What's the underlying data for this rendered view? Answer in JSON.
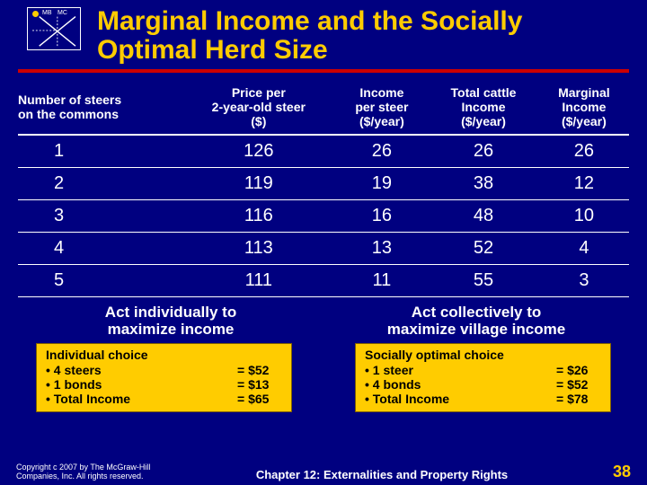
{
  "icon": {
    "mb": "MB",
    "mc": "MC"
  },
  "title": "Marginal Income and the Socially Optimal Herd Size",
  "headers": {
    "col1a": "Number of steers",
    "col1b": "on the commons",
    "col2a": "Price per",
    "col2b": "2-year-old steer",
    "col2c": "($)",
    "col3a": "Income",
    "col3b": "per steer",
    "col3c": "($/year)",
    "col4a": "Total cattle",
    "col4b": "Income",
    "col4c": "($/year)",
    "col5a": "Marginal",
    "col5b": "Income",
    "col5c": "($/year)"
  },
  "rows": [
    {
      "c1": "1",
      "c2": "126",
      "c3": "26",
      "c4": "26",
      "c5": "26"
    },
    {
      "c1": "2",
      "c2": "119",
      "c3": "19",
      "c4": "38",
      "c5": "12"
    },
    {
      "c1": "3",
      "c2": "116",
      "c3": "16",
      "c4": "48",
      "c5": "10"
    },
    {
      "c1": "4",
      "c2": "113",
      "c3": "13",
      "c4": "52",
      "c5": "4"
    },
    {
      "c1": "5",
      "c2": "111",
      "c3": "11",
      "c4": "55",
      "c5": "3"
    }
  ],
  "caption_left_a": "Act individually to",
  "caption_left_b": "maximize income",
  "caption_right_a": "Act collectively to",
  "caption_right_b": "maximize village income",
  "box_left": {
    "title": "Individual choice",
    "r1l": "• 4 steers",
    "r1v": "= $52",
    "r2l": "• 1 bonds",
    "r2v": "= $13",
    "r3l": "• Total Income",
    "r3v": "= $65"
  },
  "box_right": {
    "title": "Socially optimal choice",
    "r1l": "• 1 steer",
    "r1v": "= $26",
    "r2l": "• 4 bonds",
    "r2v": "= $52",
    "r3l": "• Total Income",
    "r3v": "= $78"
  },
  "copyright": "Copyright c 2007 by The McGraw-Hill Companies, Inc. All rights reserved.",
  "chapter": "Chapter 12: Externalities and Property Rights",
  "page": "38"
}
